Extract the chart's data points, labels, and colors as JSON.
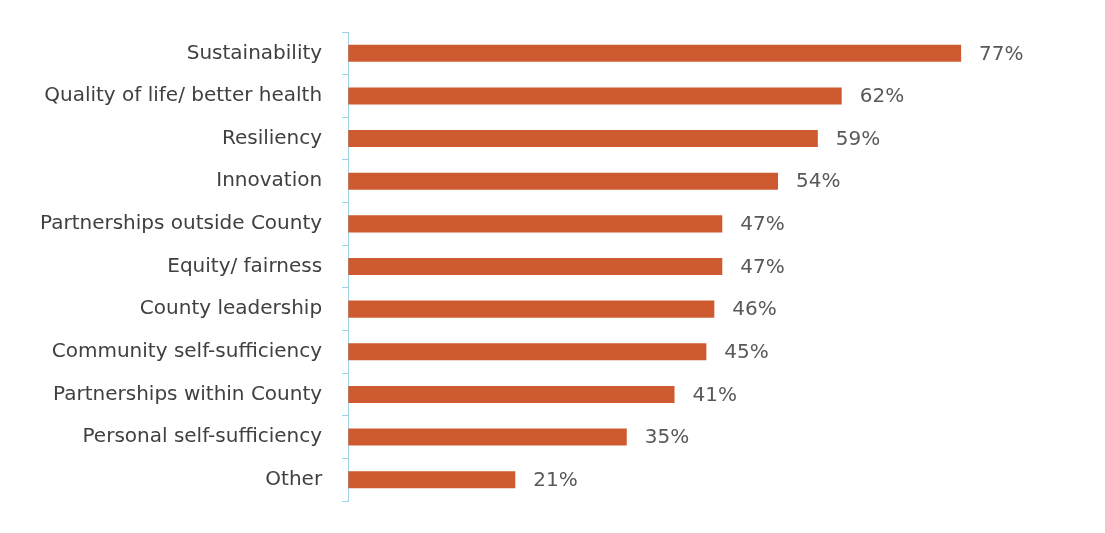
{
  "chart_data": {
    "type": "bar",
    "orientation": "horizontal",
    "categories": [
      "Sustainability",
      "Quality of life/ better health",
      "Resiliency",
      "Innovation",
      "Partnerships outside County",
      "Equity/ fairness",
      "County leadership",
      "Community self-sufficiency",
      "Partnerships within County",
      "Personal self-sufficiency",
      "Other"
    ],
    "values": [
      77,
      62,
      59,
      54,
      47,
      47,
      46,
      45,
      41,
      35,
      21
    ],
    "value_labels": [
      "77%",
      "62%",
      "59%",
      "54%",
      "47%",
      "47%",
      "46%",
      "45%",
      "41%",
      "35%",
      "21%"
    ],
    "color": "#cd5b2f",
    "grid": false,
    "legend": false,
    "tick_labels": "y"
  }
}
